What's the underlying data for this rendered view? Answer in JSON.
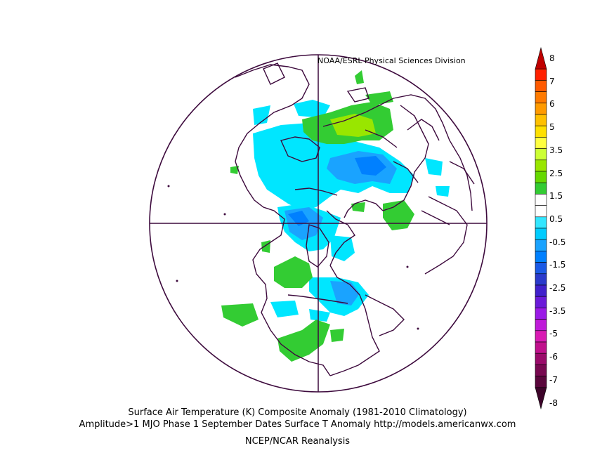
{
  "header_label": "NOAA/ESRL Physical Sciences Division",
  "captions": {
    "line1": "Surface Air Temperature (K) Composite Anomaly (1981-2010 Climatology)",
    "line2": "Amplitude>1 MJO Phase 1 September Dates Surface T Anomaly http://models.americanwx.com",
    "line3": "NCEP/NCAR Reanalysis"
  },
  "colorbar": {
    "labels": [
      "8",
      "7",
      "6",
      "5",
      "3.5",
      "2.5",
      "1.5",
      "0.5",
      "-0.5",
      "-1.5",
      "-2.5",
      "-3.5",
      "-5",
      "-6",
      "-7",
      "-8"
    ],
    "colors": [
      "#c00000",
      "#ff2000",
      "#ff5a00",
      "#ff7a00",
      "#ff9a00",
      "#ffc000",
      "#ffe000",
      "#ffff40",
      "#ccff33",
      "#99e600",
      "#66d900",
      "#33cc33",
      "#ffffff",
      "#ffffff",
      "#33e6ff",
      "#00ccff",
      "#1aa3ff",
      "#0080ff",
      "#1a5ae6",
      "#2a3acc",
      "#4020cc",
      "#6a1ad9",
      "#9a1ae6",
      "#bf1ad9",
      "#d91ab3",
      "#c0108c",
      "#9a0a6a",
      "#780850",
      "#5a063c",
      "#3d042a"
    ]
  }
}
